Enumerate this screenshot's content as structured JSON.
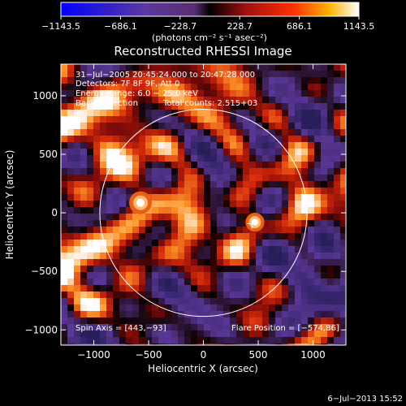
{
  "chart_data": {
    "type": "heatmap",
    "title": "Reconstructed RHESSI Image",
    "xlabel": "Heliocentric X (arcsec)",
    "ylabel": "Heliocentric Y (arcsec)",
    "xlim": [
      -1300,
      1300
    ],
    "ylim": [
      -1130,
      1270
    ],
    "xticks": [
      -1000,
      -500,
      0,
      500,
      1000
    ],
    "yticks": [
      -1000,
      -500,
      0,
      500,
      1000
    ],
    "xtick_labels": [
      "−1000",
      "−500",
      "0",
      "500",
      "1000"
    ],
    "ytick_labels": [
      "−1000",
      "−500",
      "0",
      "500",
      "1000"
    ],
    "colorbar": {
      "min": -1143.5,
      "max": 1143.5,
      "tick_labels": [
        "−1143.5",
        "−686.1",
        "−228.7",
        "228.7",
        "686.1",
        "1143.5"
      ],
      "units": "(photons cm⁻² s⁻¹ asec⁻²)"
    },
    "annotations": [
      "31−Jul−2005 20:45:24.000 to 20:47:28.000",
      "Detectors: 7F 8F 9F, Att 0",
      "Energy Range: 6.0 − 25.0 keV",
      "Back Projection",
      "Total counts: 2.515+03"
    ],
    "spin_axis": "Spin Axis = [443,−93]",
    "flare_position": "Flare Position = [−574,86]",
    "solar_limb_radius": 945,
    "flare_marker": [
      443,
      -93
    ],
    "bright_sources": [
      {
        "x": -574,
        "y": 86,
        "value": 1143.5
      },
      {
        "x": 470,
        "y": -80,
        "value": 900
      }
    ],
    "footer_date": "6−Jul−2013 15:52"
  }
}
